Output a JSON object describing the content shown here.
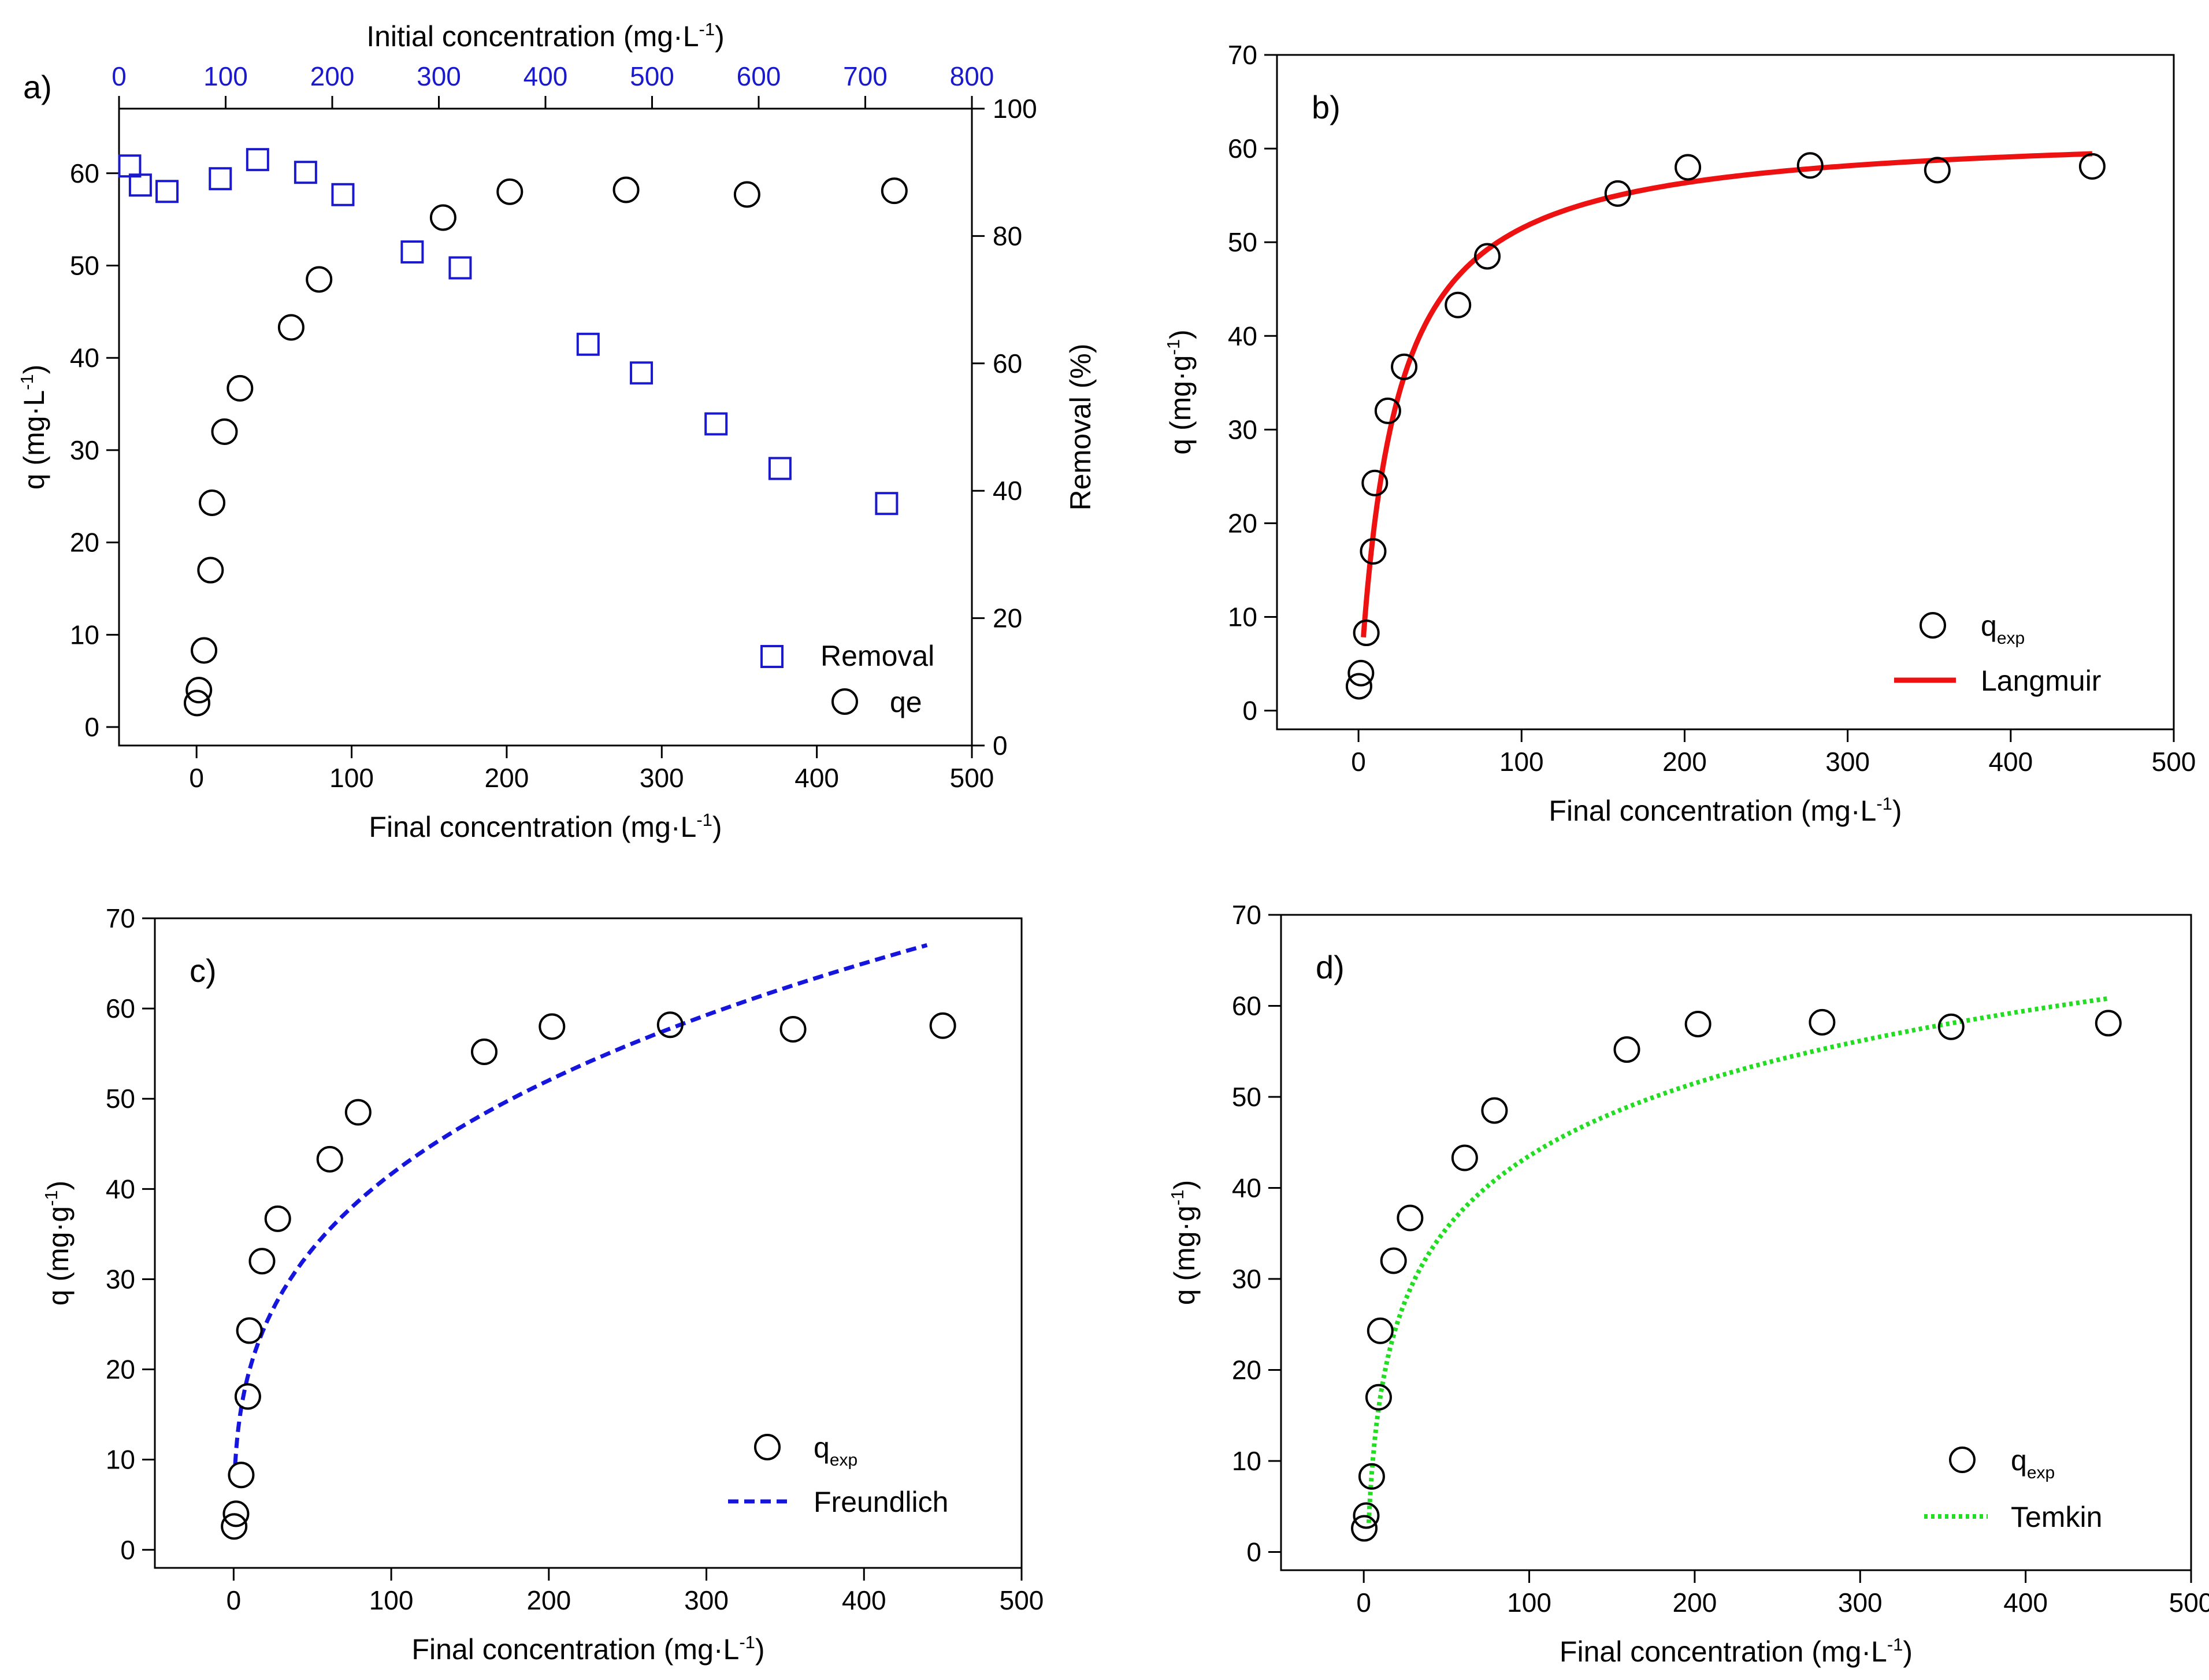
{
  "colors": {
    "black": "#000000",
    "blue": "#1a1acc",
    "red": "#ee1111",
    "green": "#22dd22",
    "dash_blue": "#1515dd"
  },
  "chart_data": [
    {
      "id": "a",
      "type": "scatter",
      "panel_label": "a)",
      "xlabel": "Final concentration (mg·L",
      "xlabel_sup": "-1",
      "xlabel_tail": ")",
      "ylabel": "q (mg·L",
      "ylabel_sup": "-1",
      "ylabel_tail": ")",
      "top_label": "Initial concentration (mg·L",
      "top_label_sup": "-1",
      "top_label_tail": ")",
      "right_label": "Removal (%)",
      "xlim": [
        -50,
        500
      ],
      "ylim": [
        -2,
        67
      ],
      "top_xlim": [
        0,
        800
      ],
      "right_ylim": [
        0,
        100
      ],
      "x_ticks": [
        "0",
        "100",
        "200",
        "300",
        "400",
        "500"
      ],
      "y_ticks": [
        "0",
        "10",
        "20",
        "30",
        "40",
        "50",
        "60"
      ],
      "top_ticks": [
        "0",
        "100",
        "200",
        "300",
        "400",
        "500",
        "600",
        "700",
        "800"
      ],
      "right_ticks": [
        "0",
        "20",
        "40",
        "60",
        "80",
        "100"
      ],
      "legend": [
        "Removal",
        "qe"
      ],
      "series": [
        {
          "name": "qe",
          "marker": "circle",
          "axis": "left",
          "x": [
            0.3,
            1.5,
            4.8,
            9.0,
            10.0,
            18.0,
            28.0,
            61.0,
            79.0,
            159.0,
            202.0,
            277.0,
            355.0,
            450.0
          ],
          "y": [
            2.6,
            4.0,
            8.3,
            17.0,
            24.3,
            32.0,
            36.7,
            43.3,
            48.5,
            55.2,
            58.0,
            58.2,
            57.7,
            58.1
          ]
        },
        {
          "name": "Removal",
          "marker": "square",
          "axis": "right",
          "x": [
            10,
            20,
            45,
            95,
            130,
            175,
            210,
            275,
            320,
            440,
            490,
            560,
            620,
            720
          ],
          "y": [
            91,
            88,
            87,
            89,
            92,
            90,
            86.5,
            77.5,
            75,
            63,
            58.5,
            50.5,
            43.5,
            38
          ]
        }
      ]
    },
    {
      "id": "b",
      "type": "scatter",
      "panel_label": "b)",
      "xlabel": "Final concentration (mg·L",
      "xlabel_sup": "-1",
      "xlabel_tail": ")",
      "ylabel": "q (mg·g",
      "ylabel_sup": "-1",
      "ylabel_tail": ")",
      "xlim": [
        -50,
        500
      ],
      "ylim": [
        -2,
        70
      ],
      "x_ticks": [
        "0",
        "100",
        "200",
        "300",
        "400",
        "500"
      ],
      "y_ticks": [
        "0",
        "10",
        "20",
        "30",
        "40",
        "50",
        "60",
        "70"
      ],
      "legend": [
        {
          "main": "q",
          "sub": "exp"
        },
        {
          "main": "Langmuir"
        }
      ],
      "points": {
        "x": [
          0.3,
          1.5,
          4.8,
          9.0,
          10.0,
          18.0,
          28.0,
          61.0,
          79.0,
          159.0,
          202.0,
          277.0,
          355.0,
          450.0
        ],
        "y": [
          2.6,
          4.0,
          8.3,
          17.0,
          24.3,
          32.0,
          36.7,
          43.3,
          48.5,
          55.2,
          58.0,
          58.2,
          57.7,
          58.1
        ]
      },
      "model": {
        "name": "Langmuir",
        "style": "solid",
        "qmax": 62.2,
        "KL": 0.048,
        "x_range": [
          3,
          450
        ]
      }
    },
    {
      "id": "c",
      "type": "scatter",
      "panel_label": "c)",
      "xlabel": "Final concentration (mg·L",
      "xlabel_sup": "-1",
      "xlabel_tail": ")",
      "ylabel": "q (mg·g",
      "ylabel_sup": "-1",
      "ylabel_tail": ")",
      "xlim": [
        -50,
        500
      ],
      "ylim": [
        -2,
        70
      ],
      "x_ticks": [
        "0",
        "100",
        "200",
        "300",
        "400",
        "500"
      ],
      "y_ticks": [
        "0",
        "10",
        "20",
        "30",
        "40",
        "50",
        "60",
        "70"
      ],
      "legend": [
        {
          "main": "q",
          "sub": "exp"
        },
        {
          "main": "Freundlich"
        }
      ],
      "points": {
        "x": [
          0.3,
          1.5,
          4.8,
          9.0,
          10.0,
          18.0,
          28.0,
          61.0,
          79.0,
          159.0,
          202.0,
          277.0,
          355.0,
          450.0
        ],
        "y": [
          2.6,
          4.0,
          8.3,
          17.0,
          24.3,
          32.0,
          36.7,
          43.3,
          48.5,
          55.2,
          58.0,
          58.2,
          57.7,
          58.1
        ]
      },
      "model": {
        "name": "Freundlich",
        "style": "dashed",
        "KF": 9.5,
        "n_inv": 0.321,
        "x_range": [
          1,
          440
        ]
      }
    },
    {
      "id": "d",
      "type": "scatter",
      "panel_label": "d)",
      "xlabel": "Final concentration (mg·L",
      "xlabel_sup": "-1",
      "xlabel_tail": ")",
      "ylabel": "q (mg·g",
      "ylabel_sup": "-1",
      "ylabel_tail": ")",
      "xlim": [
        -50,
        500
      ],
      "ylim": [
        -2,
        70
      ],
      "x_ticks": [
        "0",
        "100",
        "200",
        "300",
        "400",
        "500"
      ],
      "y_ticks": [
        "0",
        "10",
        "20",
        "30",
        "40",
        "50",
        "60",
        "70"
      ],
      "legend": [
        {
          "main": "q",
          "sub": "exp"
        },
        {
          "main": "Temkin"
        }
      ],
      "points": {
        "x": [
          0.3,
          1.5,
          4.8,
          9.0,
          10.0,
          18.0,
          28.0,
          61.0,
          79.0,
          159.0,
          202.0,
          277.0,
          355.0,
          450.0
        ],
        "y": [
          2.6,
          4.0,
          8.3,
          17.0,
          24.3,
          32.0,
          36.7,
          43.3,
          48.5,
          55.2,
          58.0,
          58.2,
          57.7,
          58.1
        ]
      },
      "model": {
        "name": "Temkin",
        "style": "dotted",
        "B": 11.5,
        "A": 0.44,
        "x_range": [
          3,
          450
        ]
      }
    }
  ]
}
